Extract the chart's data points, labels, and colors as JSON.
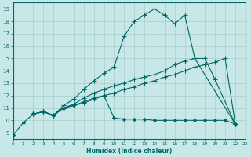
{
  "xlabel": "Humidex (Indice chaleur)",
  "background_color": "#c8e8e8",
  "grid_color": "#a8cccc",
  "line_color": "#006666",
  "xlim": [
    0,
    23
  ],
  "ylim": [
    8.5,
    19.5
  ],
  "xticks": [
    0,
    1,
    2,
    3,
    4,
    5,
    6,
    7,
    8,
    9,
    10,
    11,
    12,
    13,
    14,
    15,
    16,
    17,
    18,
    19,
    20,
    21,
    22,
    23
  ],
  "yticks": [
    9,
    10,
    11,
    12,
    13,
    14,
    15,
    16,
    17,
    18,
    19
  ],
  "lines": [
    {
      "x": [
        0,
        1,
        2,
        3,
        4,
        5,
        6,
        7,
        8,
        9,
        10,
        11,
        12,
        13,
        14,
        15,
        16,
        17,
        18,
        19,
        20,
        21,
        22
      ],
      "y": [
        8.8,
        9.8,
        10.5,
        10.7,
        10.4,
        11.0,
        11.2,
        11.5,
        11.8,
        12.0,
        10.2,
        10.1,
        10.1,
        10.1,
        10.0,
        10.0,
        10.0,
        10.0,
        10.0,
        10.0,
        10.0,
        10.0,
        9.7
      ],
      "marker": "D",
      "markersize": 2.0,
      "linewidth": 0.8
    },
    {
      "x": [
        2,
        3,
        4,
        5,
        6,
        7,
        8,
        9,
        10,
        11,
        12,
        13,
        14,
        15,
        16,
        17,
        18,
        22
      ],
      "y": [
        10.5,
        10.7,
        10.4,
        11.2,
        11.7,
        12.5,
        13.2,
        13.8,
        14.3,
        16.8,
        18.0,
        18.5,
        19.0,
        18.5,
        17.8,
        18.5,
        15.0,
        9.7
      ],
      "marker": "+",
      "markersize": 4.0,
      "linewidth": 0.8
    },
    {
      "comment": "line3 upper-mid: x=2 y=10.5, rises to x=20 y=13.3, drops x=22 y=9.7",
      "x": [
        2,
        3,
        4,
        5,
        6,
        7,
        8,
        9,
        10,
        11,
        12,
        13,
        14,
        15,
        16,
        17,
        18,
        19,
        20,
        22
      ],
      "y": [
        10.5,
        10.7,
        10.4,
        11.0,
        11.3,
        11.8,
        12.2,
        12.5,
        12.8,
        13.0,
        13.3,
        13.5,
        13.7,
        14.0,
        14.5,
        14.8,
        15.0,
        15.0,
        13.3,
        9.7
      ],
      "marker": "+",
      "markersize": 4.0,
      "linewidth": 0.8
    },
    {
      "x": [
        2,
        3,
        4,
        5,
        6,
        7,
        8,
        9,
        10,
        11,
        12,
        13,
        14,
        15,
        16,
        17,
        18,
        19,
        20,
        21,
        22
      ],
      "y": [
        10.5,
        10.7,
        10.4,
        11.0,
        11.2,
        11.4,
        11.7,
        12.0,
        12.2,
        12.5,
        12.7,
        13.0,
        13.2,
        13.5,
        13.7,
        14.0,
        14.3,
        14.5,
        14.7,
        15.0,
        9.7
      ],
      "marker": "+",
      "markersize": 4.0,
      "linewidth": 0.8
    }
  ]
}
